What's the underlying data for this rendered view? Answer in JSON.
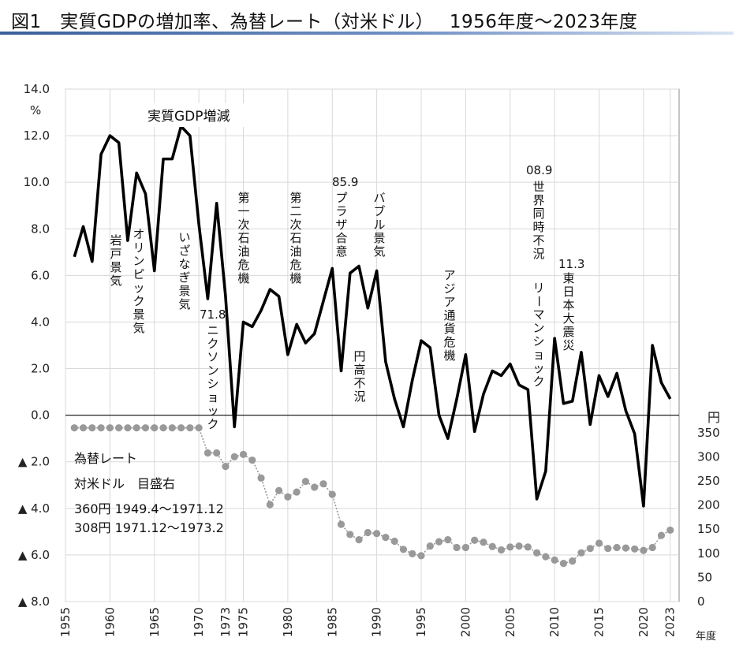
{
  "title": "図1　実質GDPの増加率、為替レート（対米ドル）　 1956年度～2023年度",
  "chart_data": {
    "type": "line",
    "left_axis": {
      "unit": "%",
      "ylim": [
        -8,
        14
      ],
      "ticks": [
        14,
        12,
        10,
        8,
        6,
        4,
        2,
        0,
        -2,
        -4,
        -6,
        -8
      ],
      "tick_labels": [
        "14.0",
        "12.0",
        "10.0",
        "8.0",
        "6.0",
        "4.0",
        "2.0",
        "0.0",
        "▲ 2.0",
        "▲ 4.0",
        "▲ 6.0",
        "▲ 8.0"
      ]
    },
    "right_axis": {
      "unit": "円",
      "ticks": [
        350,
        300,
        250,
        200,
        150,
        100,
        50,
        0
      ],
      "tick_labels": [
        "350",
        "300",
        "250",
        "200",
        "150",
        "100",
        "50",
        "0"
      ]
    },
    "x_axis": {
      "xlim": [
        1955,
        2024
      ],
      "ticks": [
        1955,
        1960,
        1965,
        1970,
        1973,
        1975,
        1980,
        1985,
        1990,
        1995,
        2000,
        2005,
        2010,
        2015,
        2020,
        2023
      ],
      "tick_labels": [
        "1955",
        "1960",
        "1965",
        "1970",
        "1973",
        "1975",
        "1980",
        "1985",
        "1990",
        "1995",
        "2000",
        "2005",
        "2010",
        "2015",
        "2020",
        "2023"
      ],
      "unit_label": "年度"
    },
    "grid": true,
    "series": [
      {
        "name": "実質GDP増減",
        "axis": "left",
        "color": "#000000",
        "x": [
          1956,
          1957,
          1958,
          1959,
          1960,
          1961,
          1962,
          1963,
          1964,
          1965,
          1966,
          1967,
          1968,
          1969,
          1970,
          1971,
          1972,
          1973,
          1974,
          1975,
          1976,
          1977,
          1978,
          1979,
          1980,
          1981,
          1982,
          1983,
          1984,
          1985,
          1986,
          1987,
          1988,
          1989,
          1990,
          1991,
          1992,
          1993,
          1994,
          1995,
          1996,
          1997,
          1998,
          1999,
          2000,
          2001,
          2002,
          2003,
          2004,
          2005,
          2006,
          2007,
          2008,
          2009,
          2010,
          2011,
          2012,
          2013,
          2014,
          2015,
          2016,
          2017,
          2018,
          2019,
          2020,
          2021,
          2022,
          2023
        ],
        "values": [
          6.8,
          8.1,
          6.6,
          11.2,
          12.0,
          11.7,
          7.5,
          10.4,
          9.5,
          6.2,
          11.0,
          11.0,
          12.4,
          12.0,
          8.2,
          5.0,
          9.1,
          5.1,
          -0.5,
          4.0,
          3.8,
          4.5,
          5.4,
          5.1,
          2.6,
          3.9,
          3.1,
          3.5,
          4.9,
          6.3,
          1.9,
          6.1,
          6.4,
          4.6,
          6.2,
          2.3,
          0.7,
          -0.5,
          1.5,
          3.2,
          2.9,
          0.0,
          -1.0,
          0.7,
          2.6,
          -0.7,
          0.9,
          1.9,
          1.7,
          2.2,
          1.3,
          1.1,
          -3.6,
          -2.4,
          3.3,
          0.5,
          0.6,
          2.7,
          -0.4,
          1.7,
          0.8,
          1.8,
          0.2,
          -0.8,
          -3.9,
          3.0,
          1.4,
          0.7
        ]
      },
      {
        "name": "為替レート",
        "axis": "right",
        "color": "#999999",
        "x": [
          1956,
          1957,
          1958,
          1959,
          1960,
          1961,
          1962,
          1963,
          1964,
          1965,
          1966,
          1967,
          1968,
          1969,
          1970,
          1971,
          1972,
          1973,
          1974,
          1975,
          1976,
          1977,
          1978,
          1979,
          1980,
          1981,
          1982,
          1983,
          1984,
          1985,
          1986,
          1987,
          1988,
          1989,
          1990,
          1991,
          1992,
          1993,
          1994,
          1995,
          1996,
          1997,
          1998,
          1999,
          2000,
          2001,
          2002,
          2003,
          2004,
          2005,
          2006,
          2007,
          2008,
          2009,
          2010,
          2011,
          2012,
          2013,
          2014,
          2015,
          2016,
          2017,
          2018,
          2019,
          2020,
          2021,
          2022,
          2023
        ],
        "values": [
          360,
          360,
          360,
          360,
          360,
          360,
          360,
          360,
          360,
          360,
          360,
          360,
          360,
          360,
          360,
          308,
          308,
          280,
          300,
          305,
          293,
          256,
          201,
          230,
          217,
          227,
          249,
          237,
          244,
          222,
          160,
          139,
          128,
          143,
          141,
          133,
          125,
          108,
          99,
          95,
          115,
          124,
          128,
          112,
          112,
          127,
          123,
          114,
          107,
          113,
          115,
          113,
          101,
          93,
          86,
          79,
          84,
          101,
          110,
          121,
          110,
          112,
          111,
          109,
          106,
          112,
          137,
          148
        ]
      }
    ],
    "annotations": [
      {
        "id": "gdp_label",
        "text": "実質GDP増減"
      },
      {
        "id": "iwato",
        "text": "岩戸景気"
      },
      {
        "id": "olympic",
        "text": "オリンピック景気"
      },
      {
        "id": "izanagi",
        "text": "いざなぎ景気"
      },
      {
        "id": "nixon_date",
        "text": "71.8"
      },
      {
        "id": "nixon",
        "text": "ニクソンショック"
      },
      {
        "id": "oil1",
        "text": "第一次石油危機"
      },
      {
        "id": "oil2",
        "text": "第二次石油危機"
      },
      {
        "id": "plaza_date",
        "text": "85.9"
      },
      {
        "id": "plaza",
        "text": "プラザ合意"
      },
      {
        "id": "endaka",
        "text": "円高不況"
      },
      {
        "id": "bubble",
        "text": "バブル景気"
      },
      {
        "id": "asia",
        "text": "アジア通貨危機"
      },
      {
        "id": "lehman_date",
        "text": "08.9"
      },
      {
        "id": "recession",
        "text": "世界同時不況"
      },
      {
        "id": "lehman",
        "text": "リーマンショック"
      },
      {
        "id": "quake_date",
        "text": "11.3"
      },
      {
        "id": "quake",
        "text": "東日本大震災"
      },
      {
        "id": "fx_l1",
        "text": "為替レート"
      },
      {
        "id": "fx_l2",
        "text": "対米ドル　目盛右"
      },
      {
        "id": "fx_l3",
        "text": "360円 1949.4～1971.12"
      },
      {
        "id": "fx_l4",
        "text": "308円 1971.12～1973.2"
      }
    ]
  }
}
